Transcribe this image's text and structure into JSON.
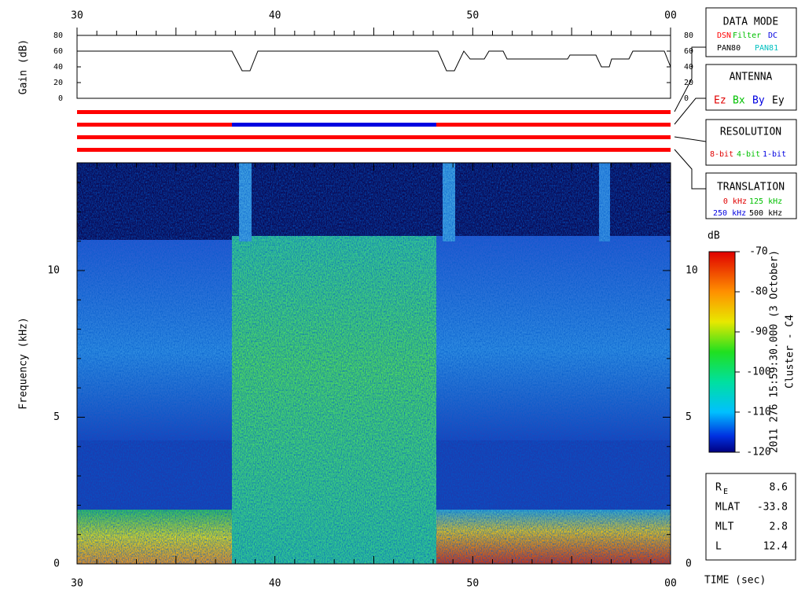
{
  "top_axis": {
    "ticks": [
      "30",
      "40",
      "50",
      "00"
    ]
  },
  "gain_panel": {
    "ylabel": "Gain (dB)",
    "yticks": [
      "0",
      "20",
      "40",
      "60",
      "80"
    ]
  },
  "spectrogram": {
    "ylabel": "Frequency (kHz)",
    "yticks": [
      "0",
      "5",
      "10"
    ],
    "xticks": [
      "30",
      "40",
      "50",
      "00"
    ],
    "xlabel": "TIME (sec)"
  },
  "colorbar": {
    "unit": "dB",
    "ticks": [
      "-70",
      "-80",
      "-90",
      "-100",
      "-110",
      "-120"
    ]
  },
  "side_label": [
    "2011 276 15:59:30.000 (3 October)",
    "Cluster - C4"
  ],
  "data_mode": {
    "title": "DATA MODE",
    "items": [
      "DSN",
      "Filter",
      "DC",
      "PAN80",
      "PAN81"
    ]
  },
  "antenna": {
    "title": "ANTENNA",
    "items": [
      "Ez",
      "Bx",
      "By",
      "Ey"
    ]
  },
  "resolution": {
    "title": "RESOLUTION",
    "items": [
      "8-bit",
      "4-bit",
      "1-bit"
    ]
  },
  "translation": {
    "title": "TRANSLATION",
    "items": [
      "0 kHz",
      "125 kHz",
      "250 kHz",
      "500 kHz"
    ]
  },
  "orbit": [
    {
      "label": "R",
      "sub": "E",
      "value": "8.6"
    },
    {
      "label": "MLAT",
      "value": "-33.8"
    },
    {
      "label": "MLT",
      "value": "2.8"
    },
    {
      "label": "L",
      "value": "12.4"
    }
  ]
}
